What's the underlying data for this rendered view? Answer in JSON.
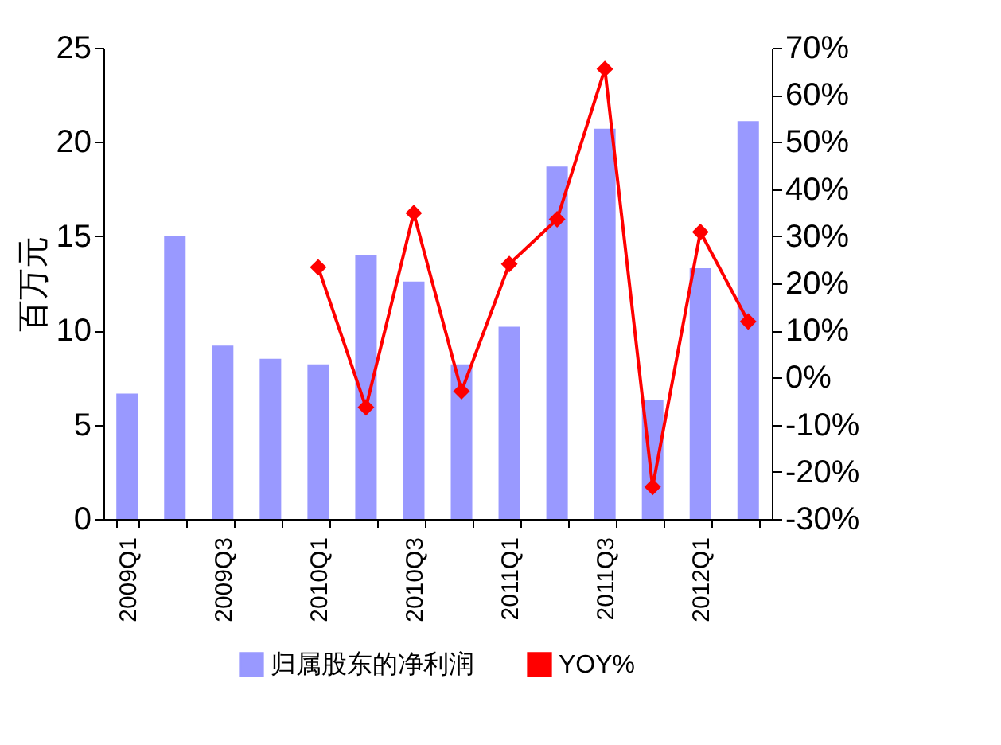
{
  "chart_data": {
    "type": "bar",
    "ylabel": "百万元",
    "categories": [
      "2009Q1",
      null,
      "2009Q3",
      null,
      "2010Q1",
      null,
      "2010Q3",
      null,
      "2011Q1",
      null,
      "2011Q3",
      null,
      "2012Q1",
      null
    ],
    "series": [
      {
        "name": "归属股东的净利润",
        "color": "#9999ff",
        "values": [
          6.65,
          15.0,
          9.2,
          8.5,
          8.2,
          14.0,
          12.6,
          8.2,
          10.2,
          18.7,
          20.7,
          6.3,
          13.3,
          21.1
        ]
      },
      {
        "name": "YOY%",
        "type": "line",
        "axis": "y2",
        "color": "#ff0000",
        "marker": "diamond",
        "values": [
          null,
          null,
          null,
          null,
          23.4,
          -6.3,
          34.9,
          -2.9,
          24.1,
          33.6,
          65.5,
          -23.2,
          30.9,
          11.9
        ]
      }
    ],
    "ylim": [
      0,
      25
    ],
    "yticks": [
      0,
      5,
      10,
      15,
      20,
      25
    ],
    "y2lim": [
      -30,
      70
    ],
    "y2ticks": [
      {
        "value": -30,
        "label": "-30%"
      },
      {
        "value": -20,
        "label": "-20%"
      },
      {
        "value": -10,
        "label": "-10%"
      },
      {
        "value": 0,
        "label": "0%"
      },
      {
        "value": 10,
        "label": "10%"
      },
      {
        "value": 20,
        "label": "20%"
      },
      {
        "value": 30,
        "label": "30%"
      },
      {
        "value": 40,
        "label": "40%"
      },
      {
        "value": 50,
        "label": "50%"
      },
      {
        "value": 60,
        "label": "60%"
      },
      {
        "value": 70,
        "label": "70%"
      }
    ],
    "legend": "bottom",
    "grid": false
  }
}
